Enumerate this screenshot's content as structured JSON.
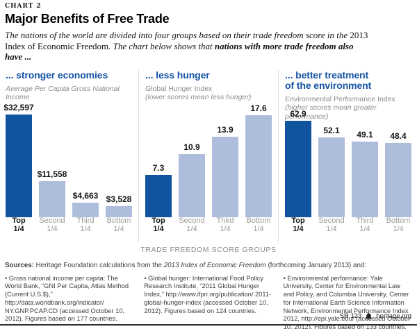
{
  "header": {
    "kicker": "CHART 2",
    "title": "Major Benefits of Free Trade",
    "description": {
      "seg1_italic": "The nations of the world are divided into four groups based on their trade freedom score in the ",
      "seg2_roman": "2013 Index of Economic Freedom.",
      "seg3_italic": " The chart below shows that ",
      "seg4_bold_italic": "nations with more trade freedom also have ..."
    }
  },
  "colors": {
    "bar_highlight": "#1054A0",
    "bar_normal": "#AFBDDD",
    "panel_title_blue": "#1553A4"
  },
  "chart_data": [
    {
      "type": "bar",
      "title_line1": "... stronger economies",
      "title_line2": "",
      "subtitle_line1": "Average Per Capita Gross National Income",
      "subtitle_line2": "",
      "categories": [
        "Top 1/4",
        "Second 1/4",
        "Third 1/4",
        "Bottom 1/4"
      ],
      "values": [
        32597,
        11558,
        4663,
        3528
      ],
      "value_labels": [
        "$32,597",
        "$11,558",
        "$4,663",
        "$3,528"
      ],
      "highlight_index": 0,
      "ylim": [
        0,
        32597
      ],
      "grid": false,
      "legend": false
    },
    {
      "type": "bar",
      "title_line1": "... less hunger",
      "title_line2": "",
      "subtitle_line1": "Global Hunger Index",
      "subtitle_line2": "(lower scores mean less hunger)",
      "categories": [
        "Top 1/4",
        "Second 1/4",
        "Third 1/4",
        "Bottom 1/4"
      ],
      "values": [
        7.3,
        10.9,
        13.9,
        17.6
      ],
      "value_labels": [
        "7.3",
        "10.9",
        "13.9",
        "17.6"
      ],
      "highlight_index": 0,
      "ylim": [
        0,
        17.6
      ],
      "grid": false,
      "legend": false
    },
    {
      "type": "bar",
      "title_line1": "... better treatment",
      "title_line2": "of the environment",
      "subtitle_line1": "Environmental Performance Index",
      "subtitle_line2": "(higher scores mean greater performance)",
      "categories": [
        "Top 1/4",
        "Second 1/4",
        "Third 1/4",
        "Bottom 1/4"
      ],
      "values": [
        62.9,
        52.1,
        49.1,
        48.4
      ],
      "value_labels": [
        "62.9",
        "52.1",
        "49.1",
        "48.4"
      ],
      "highlight_index": 0,
      "ylim": [
        0,
        62.9
      ],
      "grid": false,
      "legend": false
    }
  ],
  "axis_label": "TRADE FREEDOM SCORE GROUPS",
  "sources": {
    "head_bold": "Sources:",
    "head_mid": " Heritage Foundation calculations from the ",
    "head_italic": "2013 Index of Economic Freedom",
    "head_tail": " (forthcoming January 2013) and:",
    "columns": [
      "• Gross national income per capita: The World Bank, “GNI Per Capita, Atlas Method (Current U.S.$),” http://data.worldbank.org/indicator/ NY.GNP.PCAP.CD (accessed October 10, 2012). Figures based on 177 countries.",
      "• Global hunger: International Food Policy Research Institute, “2011 Global Hunger Index,” http://www.ifpri.org/publication/ 2011-global-hunger-index (accessed October 10, 2012). Figures based on 124 countries.",
      "• Environmental performance: Yale University, Center for Environmental Law and Policy, and Columbia University, Center for International Earth Science Information Network, Environmental Performance Index 2012, http://epi.yale.edu/ (accessed October 10, 2012). Figures based on 133 countries."
    ]
  },
  "footer": {
    "report_id": "SR 123",
    "site": "heritage.org"
  }
}
